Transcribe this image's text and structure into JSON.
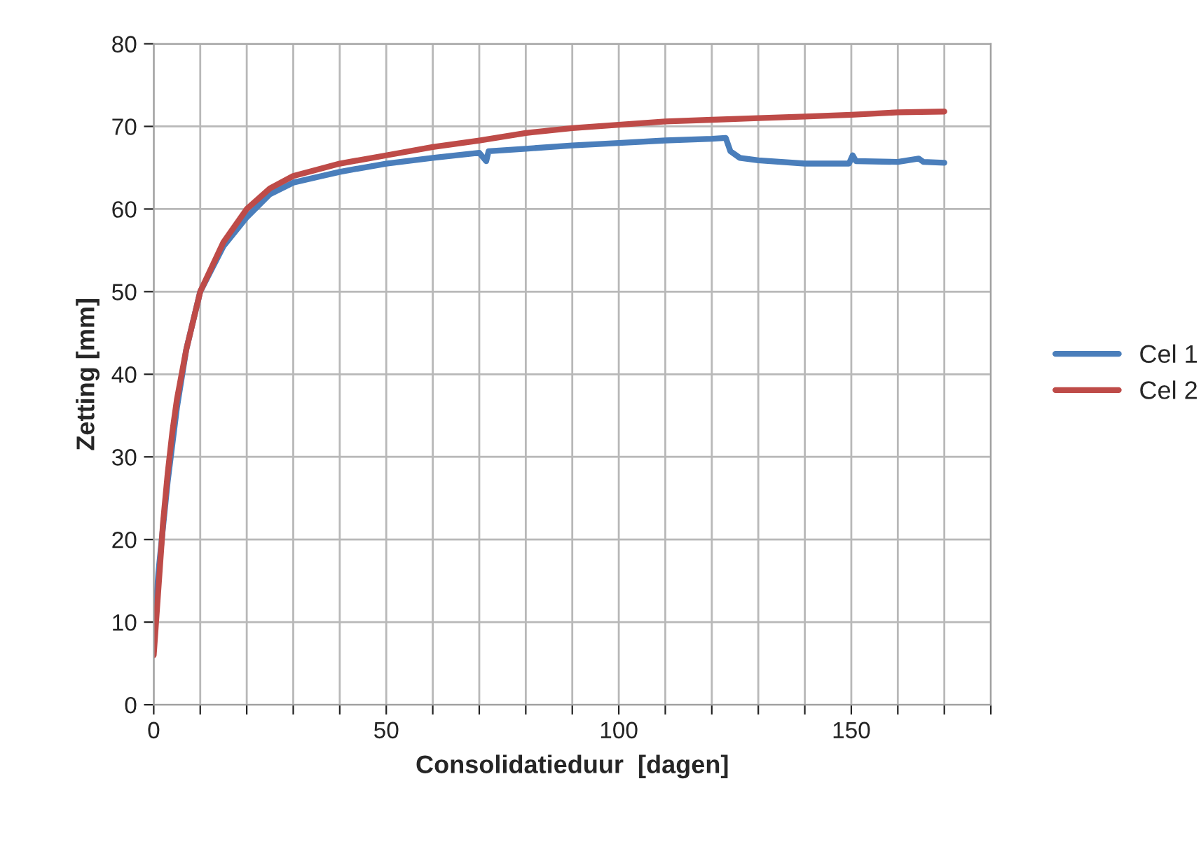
{
  "chart_data": {
    "type": "line",
    "xlabel": "Consolidatieduur  [dagen]",
    "ylabel": "Zetting [mm]",
    "xlim": [
      0,
      180
    ],
    "xticks": [
      0,
      {
        "value": 10,
        "label": null
      },
      {
        "value": 20,
        "label": null
      },
      {
        "value": 30,
        "label": null
      },
      {
        "value": 40,
        "label": null
      },
      50,
      {
        "value": 60,
        "label": null
      },
      {
        "value": 70,
        "label": null
      },
      {
        "value": 80,
        "label": null
      },
      {
        "value": 90,
        "label": null
      },
      100,
      {
        "value": 110,
        "label": null
      },
      {
        "value": 120,
        "label": null
      },
      {
        "value": 130,
        "label": null
      },
      {
        "value": 140,
        "label": null
      },
      150,
      {
        "value": 160,
        "label": null
      },
      {
        "value": 170,
        "label": null
      },
      {
        "value": 180,
        "label": null
      }
    ],
    "ylim": [
      0,
      80
    ],
    "yticks": [
      0,
      10,
      20,
      30,
      40,
      50,
      60,
      70,
      80
    ],
    "grid": true,
    "legend": "right",
    "series": [
      {
        "name": "Cel 1",
        "color": "#4a7ebb",
        "x": [
          0,
          1,
          3,
          5,
          7,
          10,
          15,
          20,
          25,
          30,
          40,
          50,
          60,
          70,
          71.5,
          72,
          80,
          90,
          100,
          110,
          120,
          123,
          124,
          126,
          130,
          140,
          149.5,
          150.3,
          151,
          160,
          164.5,
          165.5,
          170
        ],
        "values": [
          8,
          16,
          27,
          36,
          43,
          50,
          55.5,
          59,
          61.8,
          63.2,
          64.5,
          65.5,
          66.2,
          66.8,
          65.8,
          67,
          67.3,
          67.7,
          68,
          68.3,
          68.5,
          68.6,
          67,
          66.2,
          65.9,
          65.5,
          65.5,
          66.5,
          65.8,
          65.7,
          66.1,
          65.7,
          65.6
        ]
      },
      {
        "name": "Cel 2",
        "color": "#be4b48",
        "x": [
          0,
          1,
          2,
          3,
          4,
          5,
          7,
          10,
          15,
          20,
          25,
          30,
          40,
          50,
          60,
          70,
          80,
          90,
          100,
          110,
          120,
          130,
          140,
          150,
          160,
          170
        ],
        "values": [
          6,
          14,
          22,
          28,
          33,
          37,
          43,
          50,
          56,
          60,
          62.5,
          64,
          65.5,
          66.5,
          67.5,
          68.3,
          69.2,
          69.8,
          70.2,
          70.6,
          70.8,
          71,
          71.2,
          71.4,
          71.7,
          71.8
        ]
      }
    ]
  }
}
